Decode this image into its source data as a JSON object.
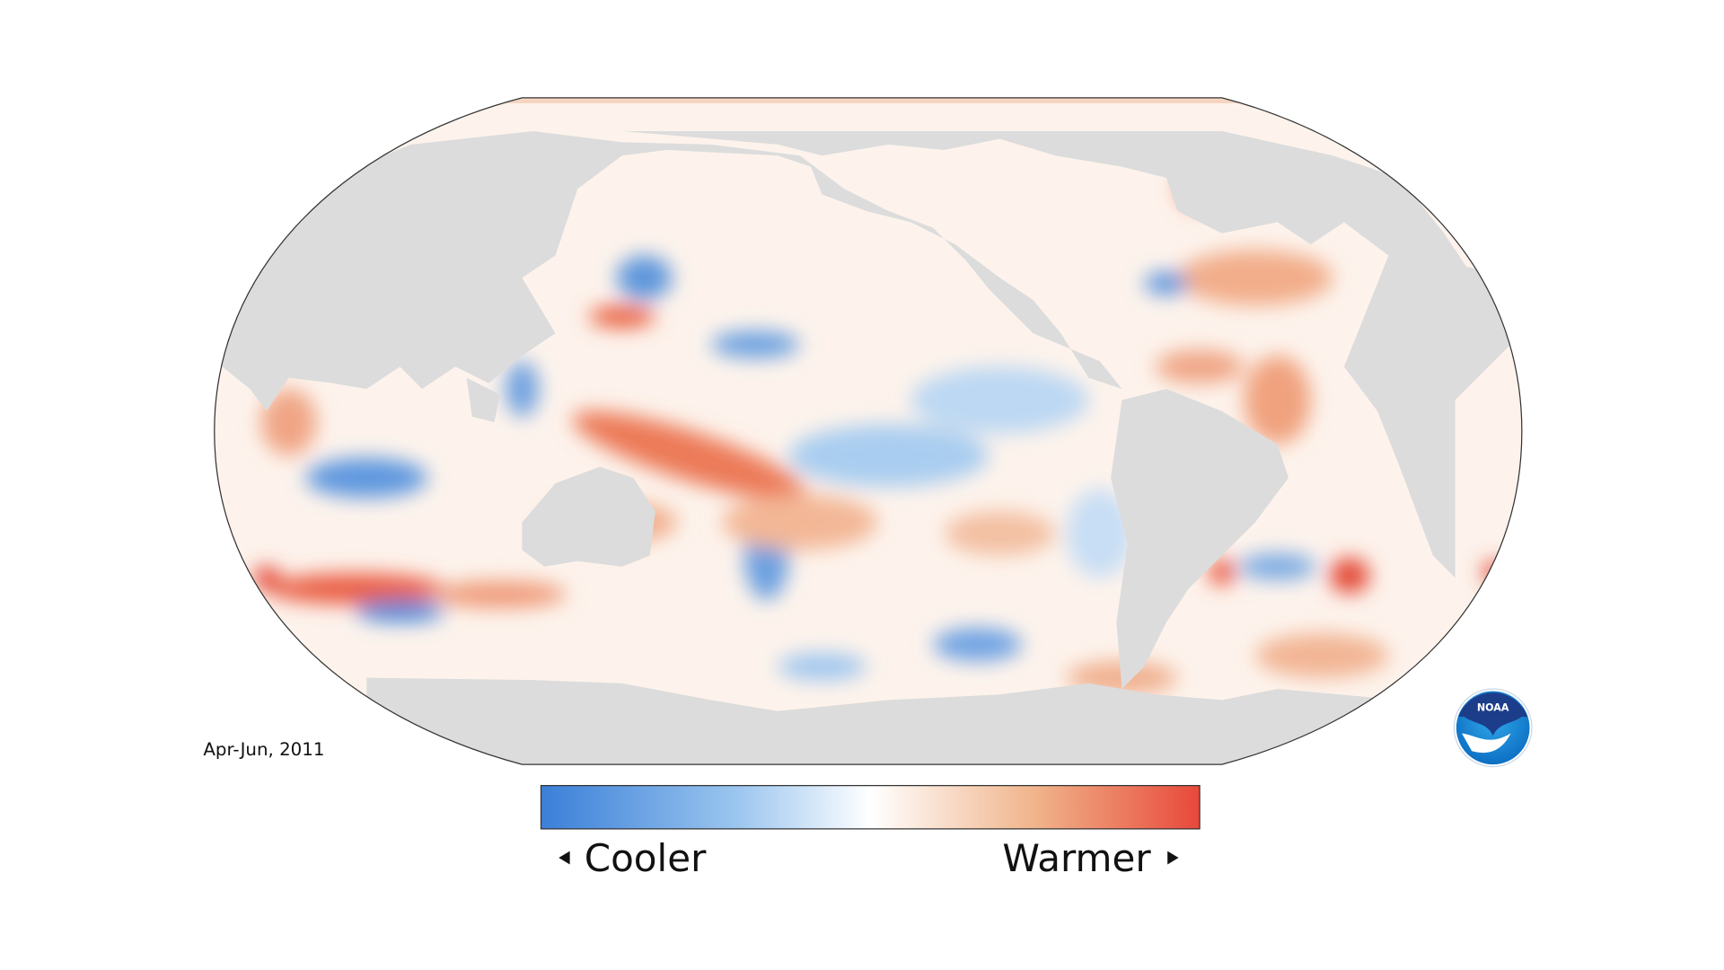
{
  "map": {
    "date": "Apr-Jun, 2011"
  },
  "legend": {
    "low_label": "Cooler",
    "high_label": "Warmer"
  },
  "logo": {
    "text": "NOAA"
  }
}
